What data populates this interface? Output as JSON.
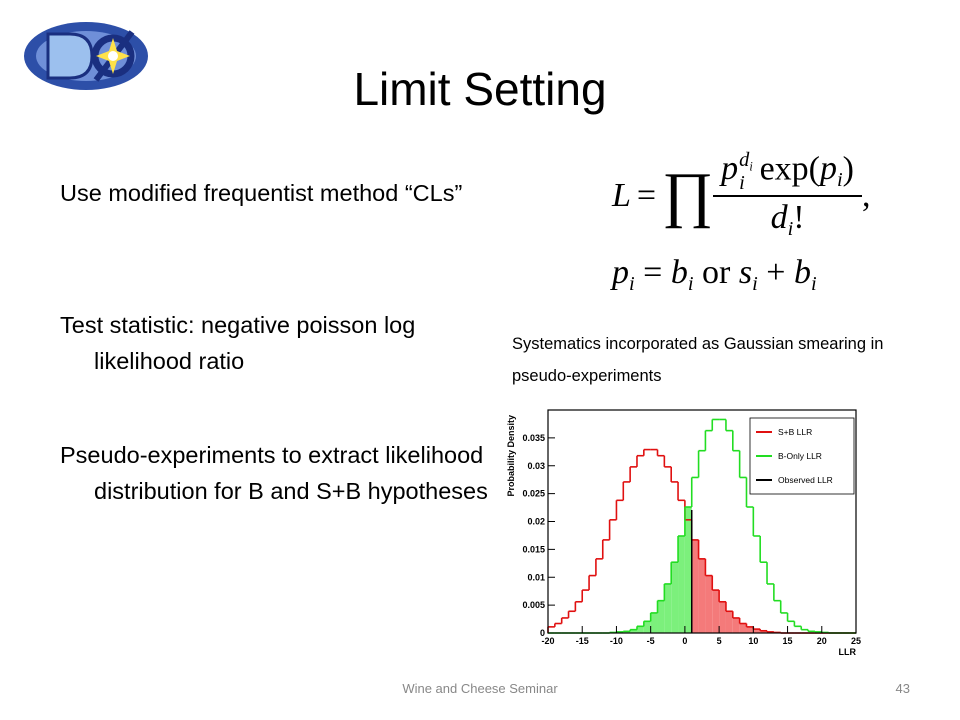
{
  "title": "Limit Setting",
  "bullets": [
    "Use modified frequentist method “CLs”",
    "Test statistic: negative poisson log likelihood ratio",
    "Pseudo-experiments to extract likelihood distribution for B and S+B hypotheses"
  ],
  "formula": {
    "lhs": "L",
    "equals": "=",
    "product": "∏",
    "numerator": [
      {
        "text": "p",
        "sub": "i",
        "sup": {
          "text": "d",
          "sub": "i"
        }
      },
      {
        "text": " exp("
      },
      {
        "text": "p",
        "sub": "i"
      },
      {
        "text": ")"
      }
    ],
    "denominator": [
      {
        "text": "d",
        "sub": "i"
      },
      {
        "text": "!"
      }
    ],
    "tail": ",",
    "line2": [
      {
        "text": "p",
        "sub": "i"
      },
      {
        "text": " = "
      },
      {
        "text": "b",
        "sub": "i"
      },
      {
        "text": " or "
      },
      {
        "text": "s",
        "sub": "i"
      },
      {
        "text": " + "
      },
      {
        "text": "b",
        "sub": "i"
      }
    ]
  },
  "caption": "Systematics incorporated as Gaussian smearing in pseudo-experiments",
  "chart_data": {
    "type": "histogram",
    "ylabel": "Probability Density",
    "xlabel": "LLR",
    "bins": [
      -20,
      -19,
      -18,
      -17,
      -16,
      -15,
      -14,
      -13,
      -12,
      -11,
      -10,
      -9,
      -8,
      -7,
      -6,
      -5,
      -4,
      -3,
      -2,
      -1,
      0,
      1,
      2,
      3,
      4,
      5,
      6,
      7,
      8,
      9,
      10,
      11,
      12,
      13,
      14,
      15,
      16,
      17,
      18,
      19,
      20,
      21,
      22,
      23,
      24,
      25
    ],
    "series": [
      {
        "name": "S+B LLR",
        "color": "#e01010",
        "fill": "#f47a7a",
        "values": [
          0.0011,
          0.0017,
          0.0027,
          0.0039,
          0.0056,
          0.0077,
          0.0103,
          0.0133,
          0.0167,
          0.0203,
          0.0238,
          0.0271,
          0.0298,
          0.0318,
          0.0329,
          0.0329,
          0.0318,
          0.0298,
          0.0271,
          0.0238,
          0.0203,
          0.0167,
          0.0133,
          0.0103,
          0.0077,
          0.0056,
          0.0039,
          0.0027,
          0.0017,
          0.0011,
          0.0007,
          0.0004,
          0.0002,
          0.0001,
          0,
          0,
          0,
          0,
          0,
          0,
          0,
          0,
          0,
          0,
          0
        ]
      },
      {
        "name": "B-Only LLR",
        "color": "#22dd22",
        "fill": "#7cf07c",
        "values": [
          0,
          0,
          0,
          0,
          0,
          0,
          0,
          0,
          0,
          0.0001,
          0.0002,
          0.0003,
          0.0006,
          0.0012,
          0.0021,
          0.0036,
          0.0058,
          0.0088,
          0.0127,
          0.0174,
          0.0226,
          0.0279,
          0.0327,
          0.0363,
          0.0383,
          0.0383,
          0.0363,
          0.0327,
          0.0279,
          0.0226,
          0.0174,
          0.0127,
          0.0088,
          0.0058,
          0.0036,
          0.0021,
          0.0012,
          0.0006,
          0.0003,
          0.0002,
          0.0001,
          0,
          0,
          0,
          0
        ]
      }
    ],
    "observed": {
      "name": "Observed LLR",
      "color": "#000000",
      "value": 1
    },
    "xlim": [
      -20,
      25
    ],
    "ylim": [
      0,
      0.04
    ],
    "xticks": [
      -20,
      -15,
      -10,
      -5,
      0,
      5,
      10,
      15,
      20,
      25
    ],
    "yticks": [
      0,
      0.005,
      0.01,
      0.015,
      0.02,
      0.025,
      0.03,
      0.035
    ],
    "legend": "upper right"
  },
  "footer": {
    "center": "Wine and Cheese Seminar",
    "page": "43"
  }
}
